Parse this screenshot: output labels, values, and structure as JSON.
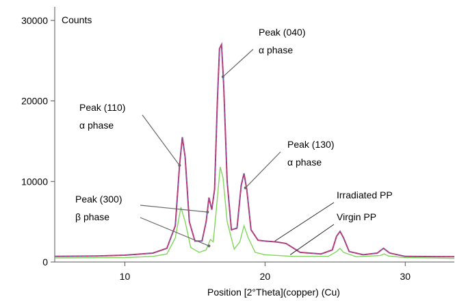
{
  "chart_data": {
    "type": "line",
    "ylabel": "Counts",
    "xlabel": "Position [2°Theta](copper) (Cu)",
    "xlim": [
      5,
      33.5
    ],
    "ylim": [
      0,
      31000
    ],
    "x_ticks": [
      10,
      20,
      30
    ],
    "y_ticks": [
      0,
      10000,
      20000,
      30000
    ],
    "grid": false,
    "colors": {
      "irradiated": "#c0306a",
      "irradiated_overlay": "#6a6ab8",
      "virgin": "#7fd65a",
      "annotation_line": "#666666",
      "axis": "#555555"
    },
    "series": [
      {
        "name": "Irradiated PP",
        "points": [
          [
            5,
            700
          ],
          [
            8,
            750
          ],
          [
            10,
            850
          ],
          [
            12,
            1100
          ],
          [
            13,
            1700
          ],
          [
            13.6,
            4500
          ],
          [
            13.9,
            12000
          ],
          [
            14.1,
            15500
          ],
          [
            14.3,
            13000
          ],
          [
            14.6,
            5000
          ],
          [
            15.0,
            2600
          ],
          [
            15.5,
            2600
          ],
          [
            15.8,
            5000
          ],
          [
            16.0,
            8000
          ],
          [
            16.2,
            6500
          ],
          [
            16.4,
            9000
          ],
          [
            16.6,
            20000
          ],
          [
            16.75,
            26500
          ],
          [
            16.9,
            27000
          ],
          [
            17.05,
            22000
          ],
          [
            17.3,
            10000
          ],
          [
            17.6,
            4000
          ],
          [
            18.0,
            4200
          ],
          [
            18.3,
            9500
          ],
          [
            18.5,
            11000
          ],
          [
            18.7,
            9000
          ],
          [
            19.0,
            4000
          ],
          [
            19.5,
            2700
          ],
          [
            20.0,
            2600
          ],
          [
            20.8,
            2500
          ],
          [
            21.5,
            2300
          ],
          [
            22.5,
            1200
          ],
          [
            24.0,
            1000
          ],
          [
            24.8,
            1500
          ],
          [
            25.1,
            3200
          ],
          [
            25.35,
            3800
          ],
          [
            25.6,
            3000
          ],
          [
            26.0,
            1300
          ],
          [
            27.0,
            900
          ],
          [
            28.0,
            1100
          ],
          [
            28.45,
            1700
          ],
          [
            28.9,
            1100
          ],
          [
            30,
            700
          ],
          [
            33.5,
            650
          ]
        ]
      },
      {
        "name": "Virgin PP",
        "points": [
          [
            5,
            500
          ],
          [
            10,
            550
          ],
          [
            12,
            700
          ],
          [
            13,
            1000
          ],
          [
            13.6,
            3000
          ],
          [
            14.0,
            6800
          ],
          [
            14.3,
            5000
          ],
          [
            14.7,
            1800
          ],
          [
            15.3,
            1200
          ],
          [
            15.8,
            1500
          ],
          [
            16.1,
            2800
          ],
          [
            16.3,
            2500
          ],
          [
            16.5,
            6000
          ],
          [
            16.8,
            11800
          ],
          [
            17.0,
            10500
          ],
          [
            17.3,
            5000
          ],
          [
            17.8,
            1600
          ],
          [
            18.2,
            2500
          ],
          [
            18.5,
            4500
          ],
          [
            18.8,
            3000
          ],
          [
            19.3,
            1200
          ],
          [
            20.0,
            900
          ],
          [
            21.0,
            800
          ],
          [
            22.0,
            700
          ],
          [
            24.5,
            700
          ],
          [
            25.1,
            1300
          ],
          [
            25.35,
            1700
          ],
          [
            25.6,
            1200
          ],
          [
            26.5,
            650
          ],
          [
            28.2,
            800
          ],
          [
            28.5,
            1000
          ],
          [
            28.8,
            750
          ],
          [
            30,
            550
          ],
          [
            33.5,
            450
          ]
        ]
      }
    ],
    "annotations": [
      {
        "line1": "Peak (040)",
        "line2": "α phase",
        "target": [
          17.0,
          23000
        ]
      },
      {
        "line1": "Peak (110)",
        "line2": "α phase",
        "target": [
          13.9,
          12000
        ]
      },
      {
        "line1": "Peak (130)",
        "line2": "α phase",
        "target": [
          18.6,
          9200
        ]
      },
      {
        "line1": "Peak (300)",
        "line2": "β phase",
        "targets": [
          [
            15.9,
            6200
          ],
          [
            16.0,
            2000
          ]
        ]
      }
    ],
    "series_labels": [
      {
        "text": "Irradiated PP",
        "target": [
          20.7,
          2600
        ]
      },
      {
        "text": "Virgin PP",
        "target": [
          21.8,
          900
        ]
      }
    ]
  }
}
